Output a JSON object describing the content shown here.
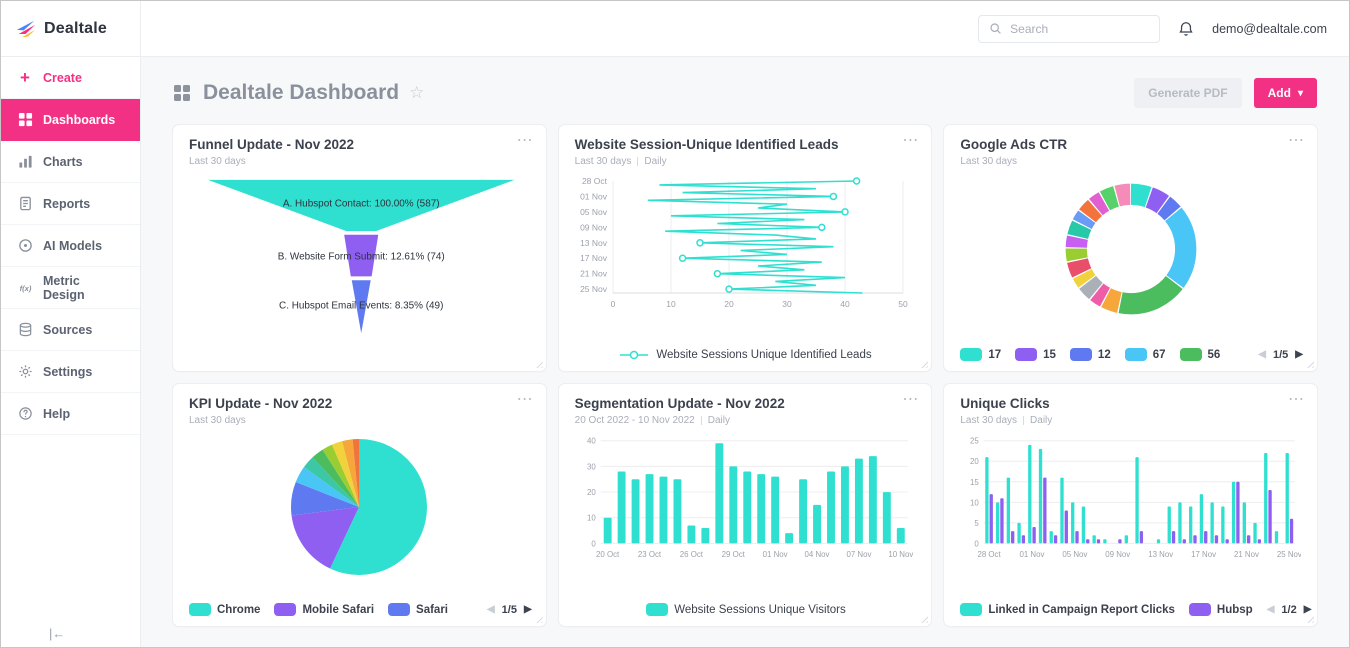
{
  "brand": {
    "name": "Dealtale"
  },
  "icons": {
    "plus": "+",
    "star": "☆",
    "menu": "⋯",
    "prev": "◀",
    "next": "▶",
    "chevron_down": "▾",
    "collapse": "|←"
  },
  "topbar": {
    "search_placeholder": "Search",
    "user_email": "demo@dealtale.com"
  },
  "sidebar": {
    "create_label": "Create",
    "items": [
      {
        "label": "Dashboards",
        "active": true
      },
      {
        "label": "Charts"
      },
      {
        "label": "Reports"
      },
      {
        "label": "AI Models"
      },
      {
        "label": "Metric Design"
      },
      {
        "label": "Sources"
      },
      {
        "label": "Settings"
      },
      {
        "label": "Help"
      }
    ]
  },
  "header": {
    "title": "Dealtale Dashboard",
    "generate_pdf_label": "Generate PDF",
    "add_label": "Add"
  },
  "colors": {
    "accent_pink": "#f23084",
    "teal": "#2fe0d0",
    "purple": "#8f5ff2",
    "blue": "#5f7af0",
    "light_blue": "#49c5f6",
    "green": "#4cbd5e"
  },
  "cards": {
    "funnel": {
      "title": "Funnel Update - Nov 2022",
      "subtitle": "Last 30 days",
      "chart_data": {
        "type": "funnel",
        "steps": [
          {
            "label": "A. Hubspot Contact: 100.00% (587)",
            "percent": 100.0,
            "count": 587,
            "color": "#2fe0d0"
          },
          {
            "label": "B. Website Form Submit: 12.61% (74)",
            "percent": 12.61,
            "count": 74,
            "color": "#8f5ff2"
          },
          {
            "label": "C. Hubspot Email Events: 8.35% (49)",
            "percent": 8.35,
            "count": 49,
            "color": "#5f7af0"
          }
        ]
      }
    },
    "sessions_line": {
      "title": "Website Session-Unique Identified Leads",
      "subtitle": "Last 30 days",
      "frequency": "Daily",
      "legend_label": "Website Sessions Unique Identified Leads",
      "chart_data": {
        "type": "line",
        "orientation": "horizontal",
        "xlim": [
          0,
          50
        ],
        "x_ticks": [
          0,
          10,
          20,
          30,
          40,
          50
        ],
        "y_tick_indices": [
          0,
          4,
          8,
          12,
          16,
          20,
          24,
          28
        ],
        "y_tick_labels": [
          "28 Oct",
          "01 Nov",
          "05 Nov",
          "09 Nov",
          "13 Nov",
          "17 Nov",
          "21 Nov",
          "25 Nov"
        ],
        "series": [
          {
            "name": "Website Sessions Unique Identified Leads",
            "color": "#2fe0d0",
            "values": [
              42,
              8,
              35,
              12,
              38,
              6,
              30,
              25,
              40,
              10,
              33,
              18,
              36,
              9,
              28,
              35,
              15,
              38,
              22,
              30,
              12,
              36,
              25,
              33,
              18,
              40,
              28,
              35,
              20,
              43
            ]
          }
        ]
      }
    },
    "google_ads_ctr": {
      "title": "Google Ads CTR",
      "subtitle": "Last 30 days",
      "pagination": "1/5",
      "legend": [
        {
          "value": "17",
          "color": "#2fe0d0"
        },
        {
          "value": "15",
          "color": "#8f5ff2"
        },
        {
          "value": "12",
          "color": "#5f7af0"
        },
        {
          "value": "67",
          "color": "#49c5f6"
        },
        {
          "value": "56",
          "color": "#4cbd5e"
        }
      ],
      "chart_data": {
        "type": "donut",
        "segments": [
          {
            "value": 17,
            "color": "#2fe0d0"
          },
          {
            "value": 15,
            "color": "#8f5ff2"
          },
          {
            "value": 12,
            "color": "#5f7af0"
          },
          {
            "value": 67,
            "color": "#49c5f6"
          },
          {
            "value": 56,
            "color": "#4cbd5e"
          },
          {
            "value": 14,
            "color": "#f5a73c"
          },
          {
            "value": 10,
            "color": "#ef5da8"
          },
          {
            "value": 12,
            "color": "#aab0b8"
          },
          {
            "value": 9,
            "color": "#f2d23c"
          },
          {
            "value": 13,
            "color": "#e94f6b"
          },
          {
            "value": 11,
            "color": "#9acd32"
          },
          {
            "value": 10,
            "color": "#c65ff2"
          },
          {
            "value": 12,
            "color": "#27c9a8"
          },
          {
            "value": 9,
            "color": "#6a9cf5"
          },
          {
            "value": 11,
            "color": "#f2743c"
          },
          {
            "value": 10,
            "color": "#e05fd1"
          },
          {
            "value": 12,
            "color": "#57d16a"
          },
          {
            "value": 13,
            "color": "#f58bb8"
          }
        ]
      }
    },
    "kpi_pie": {
      "title": "KPI Update - Nov 2022",
      "subtitle": "Last 30 days",
      "pagination": "1/5",
      "legend": [
        {
          "label": "Chrome",
          "color": "#2fe0d0"
        },
        {
          "label": "Mobile Safari",
          "color": "#8f5ff2"
        },
        {
          "label": "Safari",
          "color": "#5f7af0"
        }
      ],
      "chart_data": {
        "type": "pie",
        "slices": [
          {
            "label": "Chrome",
            "value": 57,
            "color": "#2fe0d0"
          },
          {
            "label": "Mobile Safari",
            "value": 16,
            "color": "#8f5ff2"
          },
          {
            "label": "Safari",
            "value": 8,
            "color": "#5f7af0"
          },
          {
            "label": "",
            "value": 4,
            "color": "#49c5f6"
          },
          {
            "label": "",
            "value": 3,
            "color": "#3cc7a7"
          },
          {
            "label": "",
            "value": 3,
            "color": "#4cbd5e"
          },
          {
            "label": "",
            "value": 2.5,
            "color": "#9acd32"
          },
          {
            "label": "",
            "value": 2.5,
            "color": "#f2d23c"
          },
          {
            "label": "",
            "value": 2.5,
            "color": "#f5a73c"
          },
          {
            "label": "",
            "value": 1.5,
            "color": "#f2743c"
          }
        ]
      }
    },
    "segmentation": {
      "title": "Segmentation Update - Nov 2022",
      "subtitle": "20 Oct 2022 - 10 Nov 2022",
      "frequency": "Daily",
      "legend_label": "Website Sessions Unique Visitors",
      "chart_data": {
        "type": "bar",
        "ylim": [
          0,
          40
        ],
        "y_ticks": [
          0,
          10,
          20,
          30,
          40
        ],
        "x_tick_indices": [
          0,
          3,
          6,
          9,
          12,
          15,
          18,
          21
        ],
        "x_tick_labels": [
          "20 Oct",
          "23 Oct",
          "26 Oct",
          "29 Oct",
          "01 Nov",
          "04 Nov",
          "07 Nov",
          "10 Nov"
        ],
        "series": [
          {
            "name": "Website Sessions Unique Visitors",
            "color": "#2fe0d0",
            "values": [
              10,
              28,
              25,
              27,
              26,
              25,
              7,
              6,
              39,
              30,
              28,
              27,
              26,
              4,
              25,
              15,
              28,
              30,
              33,
              34,
              20,
              6
            ]
          }
        ]
      }
    },
    "unique_clicks": {
      "title": "Unique Clicks",
      "subtitle": "Last 30 days",
      "frequency": "Daily",
      "pagination": "1/2",
      "legend": [
        {
          "label": "Linked in Campaign Report Clicks",
          "color": "#2fe0d0"
        },
        {
          "label": "Hubsp",
          "color": "#8f5ff2"
        }
      ],
      "chart_data": {
        "type": "bar",
        "ylim": [
          0,
          25
        ],
        "y_ticks": [
          0,
          5,
          10,
          15,
          20,
          25
        ],
        "x_tick_indices": [
          0,
          4,
          8,
          12,
          16,
          20,
          24,
          28
        ],
        "x_tick_labels": [
          "28 Oct",
          "01 Nov",
          "05 Nov",
          "09 Nov",
          "13 Nov",
          "17 Nov",
          "21 Nov",
          "25 Nov"
        ],
        "series": [
          {
            "name": "Linked in Campaign Report Clicks",
            "color": "#2fe0d0",
            "values": [
              21,
              10,
              16,
              5,
              24,
              23,
              3,
              16,
              10,
              9,
              2,
              1,
              0,
              2,
              21,
              0,
              1,
              9,
              10,
              9,
              12,
              10,
              9,
              15,
              10,
              5,
              22,
              3,
              22
            ]
          },
          {
            "name": "Hubsp",
            "color": "#8f5ff2",
            "values": [
              12,
              11,
              3,
              2,
              4,
              16,
              2,
              8,
              3,
              1,
              1,
              0,
              1,
              0,
              3,
              0,
              0,
              3,
              1,
              2,
              3,
              2,
              1,
              15,
              2,
              1,
              13,
              0,
              6
            ]
          }
        ]
      }
    }
  }
}
